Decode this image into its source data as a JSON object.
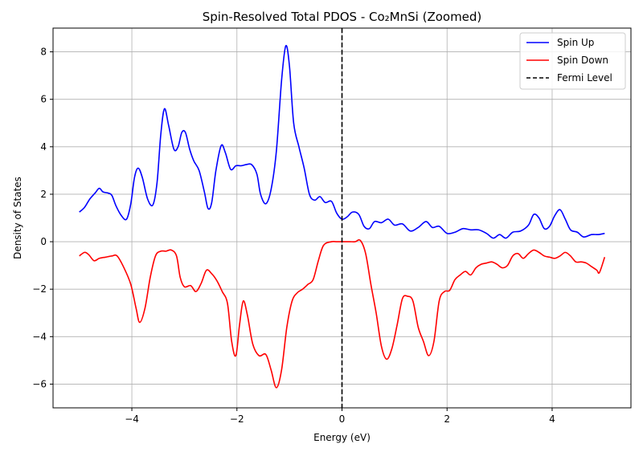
{
  "chart_data": {
    "type": "line",
    "title": "Spin-Resolved Total PDOS - Co₂MnSi (Zoomed)",
    "xlabel": "Energy (eV)",
    "ylabel": "Density of States",
    "xlim": [
      -5.5,
      5.5
    ],
    "ylim": [
      -7,
      9
    ],
    "xticks": [
      -4,
      -2,
      0,
      2,
      4
    ],
    "yticks": [
      -6,
      -4,
      -2,
      0,
      2,
      4,
      6,
      8
    ],
    "xtick_labels": [
      "−4",
      "−2",
      "0",
      "2",
      "4"
    ],
    "ytick_labels": [
      "−6",
      "−4",
      "−2",
      "0",
      "2",
      "4",
      "6",
      "8"
    ],
    "grid": true,
    "legend_position": "top-right",
    "series": [
      {
        "name": "Spin Up",
        "color": "#0000ff",
        "style": "solid",
        "points": [
          [
            -5.0,
            1.25
          ],
          [
            -4.9,
            1.45
          ],
          [
            -4.8,
            1.8
          ],
          [
            -4.7,
            2.05
          ],
          [
            -4.62,
            2.25
          ],
          [
            -4.55,
            2.1
          ],
          [
            -4.45,
            2.05
          ],
          [
            -4.38,
            1.95
          ],
          [
            -4.3,
            1.5
          ],
          [
            -4.2,
            1.1
          ],
          [
            -4.1,
            0.95
          ],
          [
            -4.02,
            1.6
          ],
          [
            -3.95,
            2.7
          ],
          [
            -3.88,
            3.1
          ],
          [
            -3.8,
            2.7
          ],
          [
            -3.7,
            1.8
          ],
          [
            -3.6,
            1.55
          ],
          [
            -3.52,
            2.5
          ],
          [
            -3.45,
            4.5
          ],
          [
            -3.38,
            5.6
          ],
          [
            -3.3,
            4.9
          ],
          [
            -3.2,
            3.9
          ],
          [
            -3.12,
            4.0
          ],
          [
            -3.05,
            4.6
          ],
          [
            -2.98,
            4.6
          ],
          [
            -2.9,
            3.9
          ],
          [
            -2.82,
            3.4
          ],
          [
            -2.72,
            3.0
          ],
          [
            -2.62,
            2.1
          ],
          [
            -2.55,
            1.4
          ],
          [
            -2.48,
            1.65
          ],
          [
            -2.4,
            3.0
          ],
          [
            -2.3,
            4.05
          ],
          [
            -2.22,
            3.75
          ],
          [
            -2.12,
            3.05
          ],
          [
            -2.02,
            3.2
          ],
          [
            -1.92,
            3.2
          ],
          [
            -1.82,
            3.25
          ],
          [
            -1.72,
            3.25
          ],
          [
            -1.62,
            2.85
          ],
          [
            -1.55,
            2.0
          ],
          [
            -1.45,
            1.6
          ],
          [
            -1.35,
            2.2
          ],
          [
            -1.25,
            3.8
          ],
          [
            -1.15,
            6.8
          ],
          [
            -1.07,
            8.25
          ],
          [
            -1.0,
            7.4
          ],
          [
            -0.92,
            5.0
          ],
          [
            -0.82,
            4.0
          ],
          [
            -0.72,
            3.1
          ],
          [
            -0.62,
            2.0
          ],
          [
            -0.52,
            1.75
          ],
          [
            -0.42,
            1.9
          ],
          [
            -0.32,
            1.65
          ],
          [
            -0.2,
            1.7
          ],
          [
            -0.1,
            1.2
          ],
          [
            0.0,
            0.95
          ],
          [
            0.1,
            1.05
          ],
          [
            0.2,
            1.25
          ],
          [
            0.32,
            1.15
          ],
          [
            0.42,
            0.65
          ],
          [
            0.52,
            0.55
          ],
          [
            0.62,
            0.85
          ],
          [
            0.75,
            0.8
          ],
          [
            0.88,
            0.95
          ],
          [
            1.0,
            0.7
          ],
          [
            1.15,
            0.75
          ],
          [
            1.3,
            0.45
          ],
          [
            1.45,
            0.6
          ],
          [
            1.6,
            0.85
          ],
          [
            1.72,
            0.6
          ],
          [
            1.85,
            0.65
          ],
          [
            2.0,
            0.35
          ],
          [
            2.15,
            0.4
          ],
          [
            2.3,
            0.55
          ],
          [
            2.45,
            0.5
          ],
          [
            2.6,
            0.5
          ],
          [
            2.75,
            0.35
          ],
          [
            2.88,
            0.15
          ],
          [
            3.0,
            0.3
          ],
          [
            3.12,
            0.15
          ],
          [
            3.25,
            0.4
          ],
          [
            3.4,
            0.45
          ],
          [
            3.55,
            0.7
          ],
          [
            3.65,
            1.15
          ],
          [
            3.75,
            1.0
          ],
          [
            3.85,
            0.55
          ],
          [
            3.95,
            0.65
          ],
          [
            4.05,
            1.1
          ],
          [
            4.15,
            1.35
          ],
          [
            4.25,
            0.95
          ],
          [
            4.35,
            0.5
          ],
          [
            4.48,
            0.4
          ],
          [
            4.6,
            0.2
          ],
          [
            4.75,
            0.3
          ],
          [
            4.88,
            0.3
          ],
          [
            5.0,
            0.35
          ]
        ]
      },
      {
        "name": "Spin Down",
        "color": "#ff0000",
        "style": "solid",
        "points": [
          [
            -5.0,
            -0.6
          ],
          [
            -4.9,
            -0.45
          ],
          [
            -4.82,
            -0.55
          ],
          [
            -4.72,
            -0.8
          ],
          [
            -4.62,
            -0.7
          ],
          [
            -4.5,
            -0.65
          ],
          [
            -4.38,
            -0.6
          ],
          [
            -4.28,
            -0.6
          ],
          [
            -4.15,
            -1.1
          ],
          [
            -4.02,
            -1.8
          ],
          [
            -3.92,
            -2.8
          ],
          [
            -3.85,
            -3.4
          ],
          [
            -3.75,
            -2.8
          ],
          [
            -3.65,
            -1.5
          ],
          [
            -3.55,
            -0.6
          ],
          [
            -3.45,
            -0.4
          ],
          [
            -3.35,
            -0.4
          ],
          [
            -3.25,
            -0.35
          ],
          [
            -3.15,
            -0.6
          ],
          [
            -3.08,
            -1.5
          ],
          [
            -3.0,
            -1.9
          ],
          [
            -2.88,
            -1.85
          ],
          [
            -2.78,
            -2.1
          ],
          [
            -2.68,
            -1.75
          ],
          [
            -2.58,
            -1.2
          ],
          [
            -2.48,
            -1.35
          ],
          [
            -2.38,
            -1.65
          ],
          [
            -2.28,
            -2.1
          ],
          [
            -2.18,
            -2.6
          ],
          [
            -2.1,
            -4.2
          ],
          [
            -2.02,
            -4.8
          ],
          [
            -1.95,
            -3.5
          ],
          [
            -1.88,
            -2.5
          ],
          [
            -1.8,
            -3.1
          ],
          [
            -1.7,
            -4.3
          ],
          [
            -1.58,
            -4.8
          ],
          [
            -1.45,
            -4.75
          ],
          [
            -1.35,
            -5.4
          ],
          [
            -1.25,
            -6.15
          ],
          [
            -1.15,
            -5.4
          ],
          [
            -1.05,
            -3.6
          ],
          [
            -0.95,
            -2.5
          ],
          [
            -0.85,
            -2.15
          ],
          [
            -0.75,
            -2.0
          ],
          [
            -0.65,
            -1.8
          ],
          [
            -0.55,
            -1.6
          ],
          [
            -0.45,
            -0.8
          ],
          [
            -0.35,
            -0.15
          ],
          [
            -0.2,
            0.0
          ],
          [
            -0.1,
            0.0
          ],
          [
            0.0,
            0.0
          ],
          [
            0.15,
            0.0
          ],
          [
            0.25,
            0.0
          ],
          [
            0.35,
            0.05
          ],
          [
            0.45,
            -0.5
          ],
          [
            0.55,
            -1.8
          ],
          [
            0.65,
            -3.0
          ],
          [
            0.75,
            -4.4
          ],
          [
            0.85,
            -4.95
          ],
          [
            0.95,
            -4.5
          ],
          [
            1.05,
            -3.5
          ],
          [
            1.15,
            -2.4
          ],
          [
            1.25,
            -2.3
          ],
          [
            1.35,
            -2.5
          ],
          [
            1.45,
            -3.6
          ],
          [
            1.55,
            -4.2
          ],
          [
            1.65,
            -4.8
          ],
          [
            1.75,
            -4.2
          ],
          [
            1.85,
            -2.5
          ],
          [
            1.95,
            -2.1
          ],
          [
            2.05,
            -2.05
          ],
          [
            2.15,
            -1.6
          ],
          [
            2.25,
            -1.4
          ],
          [
            2.35,
            -1.25
          ],
          [
            2.45,
            -1.4
          ],
          [
            2.55,
            -1.1
          ],
          [
            2.65,
            -0.95
          ],
          [
            2.75,
            -0.9
          ],
          [
            2.85,
            -0.85
          ],
          [
            2.95,
            -0.95
          ],
          [
            3.05,
            -1.1
          ],
          [
            3.15,
            -1.0
          ],
          [
            3.25,
            -0.6
          ],
          [
            3.35,
            -0.5
          ],
          [
            3.45,
            -0.7
          ],
          [
            3.55,
            -0.5
          ],
          [
            3.65,
            -0.35
          ],
          [
            3.75,
            -0.45
          ],
          [
            3.85,
            -0.6
          ],
          [
            3.95,
            -0.65
          ],
          [
            4.05,
            -0.7
          ],
          [
            4.15,
            -0.6
          ],
          [
            4.25,
            -0.45
          ],
          [
            4.35,
            -0.6
          ],
          [
            4.45,
            -0.85
          ],
          [
            4.55,
            -0.85
          ],
          [
            4.65,
            -0.9
          ],
          [
            4.75,
            -1.05
          ],
          [
            4.85,
            -1.2
          ],
          [
            4.9,
            -1.3
          ],
          [
            5.0,
            -0.65
          ]
        ]
      },
      {
        "name": "Fermi Level",
        "color": "#000000",
        "style": "dashed",
        "vertical_x": 0
      }
    ]
  }
}
